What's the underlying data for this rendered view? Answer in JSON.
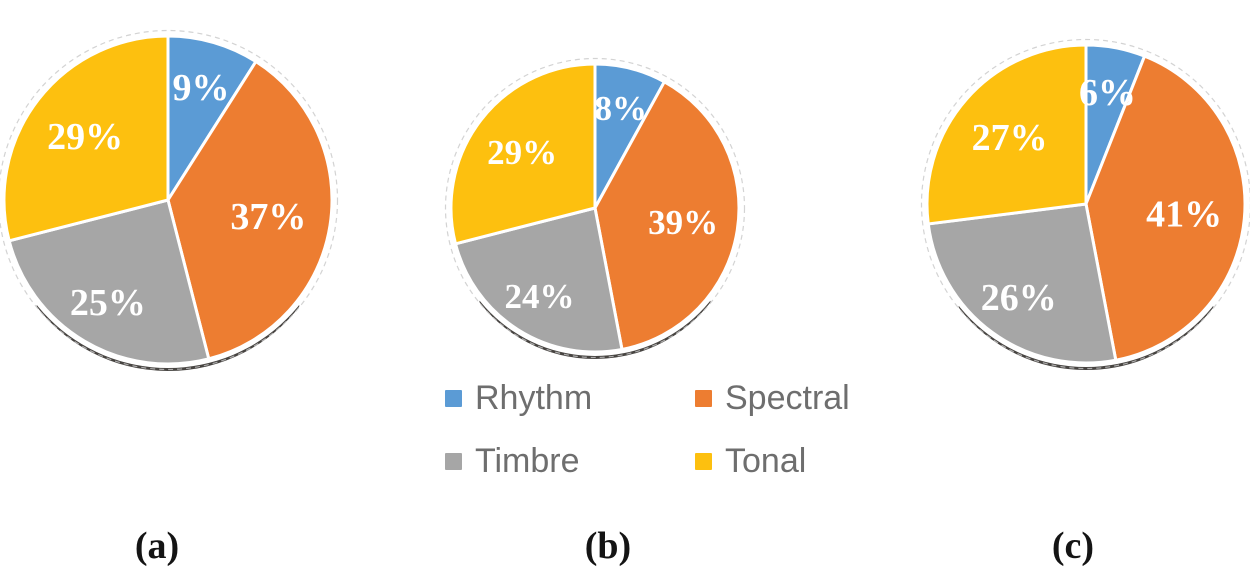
{
  "legend": {
    "position": "bottom-center",
    "items": [
      {
        "label": "Rhythm",
        "color": "#5B9BD5"
      },
      {
        "label": "Spectral",
        "color": "#ED7D31"
      },
      {
        "label": "Timbre",
        "color": "#A6A6A6"
      },
      {
        "label": "Tonal",
        "color": "#FDC00F"
      }
    ]
  },
  "chart_data": [
    {
      "type": "pie",
      "title": "(a)",
      "categories": [
        "Rhythm",
        "Spectral",
        "Timbre",
        "Tonal"
      ],
      "values": [
        9,
        37,
        25,
        29
      ],
      "data_labels": [
        "9%",
        "37%",
        "25%",
        "29%"
      ],
      "colors": [
        "#5B9BD5",
        "#ED7D31",
        "#A6A6A6",
        "#FDC00F"
      ],
      "start_angle_deg": 0,
      "direction": "clockwise",
      "label_color": "#ffffff",
      "slice_border_color": "#ffffff"
    },
    {
      "type": "pie",
      "title": "(b)",
      "categories": [
        "Rhythm",
        "Spectral",
        "Timbre",
        "Tonal"
      ],
      "values": [
        8,
        39,
        24,
        29
      ],
      "data_labels": [
        "8%",
        "39%",
        "24%",
        "29%"
      ],
      "colors": [
        "#5B9BD5",
        "#ED7D31",
        "#A6A6A6",
        "#FDC00F"
      ],
      "start_angle_deg": 0,
      "direction": "clockwise",
      "label_color": "#ffffff",
      "slice_border_color": "#ffffff"
    },
    {
      "type": "pie",
      "title": "(c)",
      "categories": [
        "Rhythm",
        "Spectral",
        "Timbre",
        "Tonal"
      ],
      "values": [
        6,
        41,
        26,
        27
      ],
      "data_labels": [
        "6%",
        "41%",
        "26%",
        "27%"
      ],
      "colors": [
        "#5B9BD5",
        "#ED7D31",
        "#A6A6A6",
        "#FDC00F"
      ],
      "start_angle_deg": 0,
      "direction": "clockwise",
      "label_color": "#ffffff",
      "slice_border_color": "#ffffff"
    }
  ]
}
